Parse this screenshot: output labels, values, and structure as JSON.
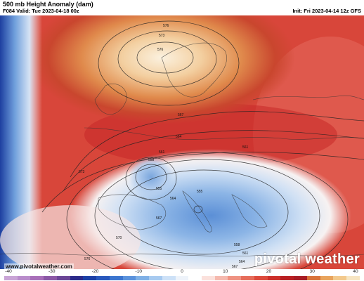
{
  "header": {
    "title": "500 mb Height Anomaly (dam)",
    "valid": "F084 Valid: Tue 2023-04-18 00z",
    "init": "Init: Fri 2023-04-14 12z GFS"
  },
  "map": {
    "contour_labels": [
      "576",
      "573",
      "576",
      "567",
      "564",
      "561",
      "561",
      "558",
      "555",
      "555",
      "564",
      "567",
      "570",
      "573",
      "576",
      "558",
      "561",
      "564",
      "567"
    ]
  },
  "footer": {
    "website": "www.pivotalweather.com",
    "brand": "pivotal weather"
  },
  "colorbar": {
    "ticks": [
      "-40",
      "-30",
      "-20",
      "-10",
      "0",
      "10",
      "20",
      "30",
      "40"
    ],
    "colors": [
      "#c9a4d6",
      "#b98ccb",
      "#a86fb9",
      "#8b58a6",
      "#6a4596",
      "#2b2a8a",
      "#1b3fa6",
      "#2858bd",
      "#3b75cf",
      "#5a92dc",
      "#7fb0e6",
      "#a7caf0",
      "#cde1f7",
      "#eef3fa",
      "#ffffff",
      "#fbe1dc",
      "#f5b9ae",
      "#ef9282",
      "#e66c5a",
      "#dc4a3c",
      "#cc2f2a",
      "#b91f22",
      "#a71c24",
      "#d9733a",
      "#e9a45c",
      "#f3c98c",
      "#f7e5c2"
    ]
  }
}
